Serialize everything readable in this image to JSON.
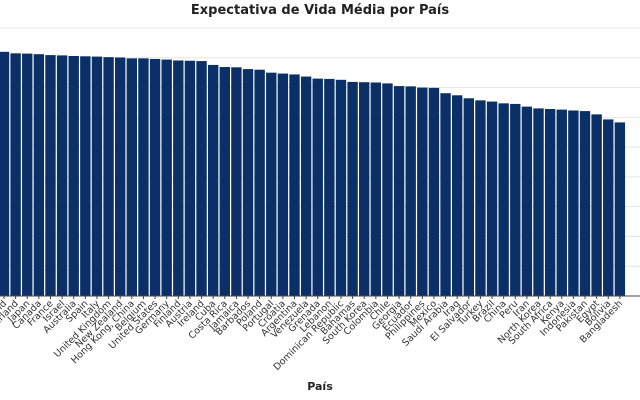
{
  "chart_data": {
    "type": "bar",
    "title": "Expectativa de Vida Média por País",
    "xlabel": "País",
    "ylabel": "",
    "ylim": [
      0,
      90
    ],
    "grid": true,
    "bar_color": "#0b3068",
    "categories": [
      "Iceland",
      "Switzerland",
      "Japan",
      "Canada",
      "France",
      "Israel",
      "Australia",
      "Spain",
      "Italy",
      "United Kingdom",
      "New Zealand",
      "Hong Kong, China",
      "Belgium",
      "United States",
      "Germany",
      "Finland",
      "Austria",
      "Ireland",
      "Cuba",
      "Costa Rica",
      "Jamaica",
      "Barbados",
      "Poland",
      "Portugal",
      "Croatia",
      "Argentina",
      "Venezuela",
      "Grenada",
      "Lebanon",
      "Dominican Republic",
      "Bahamas",
      "South Korea",
      "Colombia",
      "Chile",
      "Georgia",
      "Ecuador",
      "Philippines",
      "Mexico",
      "Saudi Arabia",
      "Iraq",
      "El Salvador",
      "Turkey",
      "Brazil",
      "China",
      "Peru",
      "Iran",
      "North Korea",
      "South Africa",
      "Kenya",
      "Indonesia",
      "Pakistan",
      "Egypt",
      "Bolivia",
      "Bangladesh"
    ],
    "values": [
      82.0,
      81.5,
      81.4,
      81.2,
      80.9,
      80.8,
      80.6,
      80.5,
      80.4,
      80.2,
      80.1,
      79.8,
      79.8,
      79.6,
      79.4,
      79.1,
      79.0,
      78.9,
      77.6,
      76.9,
      76.8,
      76.2,
      76.0,
      75.0,
      74.7,
      74.4,
      73.7,
      73.0,
      72.9,
      72.6,
      71.9,
      71.8,
      71.7,
      71.4,
      70.5,
      70.4,
      70.0,
      69.9,
      68.1,
      67.4,
      66.4,
      65.7,
      65.3,
      64.7,
      64.5,
      63.6,
      63.0,
      62.8,
      62.6,
      62.3,
      62.1,
      61.0,
      59.3,
      58.3
    ]
  }
}
